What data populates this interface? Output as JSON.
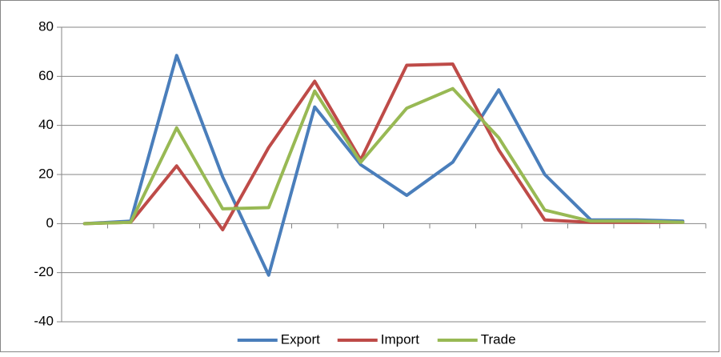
{
  "chart_data": {
    "type": "line",
    "categories": [
      null,
      null,
      null,
      null,
      null,
      null,
      null,
      null,
      null,
      null,
      null,
      null,
      null,
      null
    ],
    "series": [
      {
        "name": "Export",
        "color": "#4a7ebb",
        "values": [
          0,
          1,
          68.5,
          19,
          -21,
          47.5,
          24,
          11.5,
          25,
          54.5,
          20,
          1.5,
          1.5,
          1
        ]
      },
      {
        "name": "Import",
        "color": "#be4b48",
        "values": [
          0,
          0.5,
          23.5,
          -2.5,
          31,
          58,
          26,
          64.5,
          65,
          30,
          1.5,
          0.5,
          0.5,
          0.5
        ]
      },
      {
        "name": "Trade",
        "color": "#98b954",
        "values": [
          0,
          0.5,
          39,
          6,
          6.5,
          54,
          25,
          47,
          55,
          35,
          5.5,
          1,
          1,
          0.5
        ]
      }
    ],
    "ylim": [
      -40,
      80
    ],
    "yticks": [
      -40,
      -20,
      0,
      20,
      40,
      60,
      80
    ],
    "grid": true,
    "legend": "bottom"
  }
}
